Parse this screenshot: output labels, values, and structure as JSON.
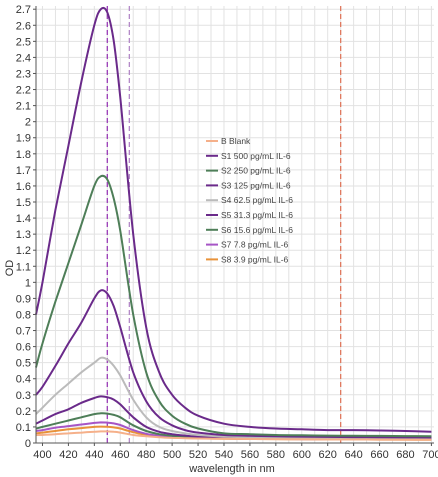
{
  "chart_data": {
    "type": "line",
    "xlabel": "wavelength in nm",
    "ylabel": "OD",
    "xlim": [
      395,
      702
    ],
    "ylim": [
      0,
      2.72
    ],
    "grid": true,
    "legend_placement": "center-right",
    "x_ticks": [
      "400",
      "420",
      "440",
      "460",
      "480",
      "500",
      "520",
      "540",
      "560",
      "580",
      "600",
      "620",
      "640",
      "660",
      "680",
      "700"
    ],
    "y_ticks": [
      "0",
      "0.1",
      "0.2",
      "0.3",
      "0.4",
      "0.5",
      "0.6",
      "0.7",
      "0.8",
      "0.9",
      "1",
      "1.1",
      "1.2",
      "1.3",
      "1.4",
      "1.5",
      "1.6",
      "1.7",
      "1.8",
      "1.9",
      "2",
      "2.1",
      "2.2",
      "2.3",
      "2.4",
      "2.5",
      "2.6",
      "2.7"
    ],
    "x": [
      395,
      400,
      410,
      420,
      430,
      440,
      445,
      450,
      455,
      460,
      470,
      480,
      490,
      500,
      510,
      520,
      540,
      560,
      580,
      600,
      620,
      640,
      660,
      680,
      700
    ],
    "series": [
      {
        "name": "B Blank",
        "color": "#f5b08a",
        "values": [
          0.05,
          0.05,
          0.055,
          0.06,
          0.065,
          0.07,
          0.072,
          0.072,
          0.07,
          0.065,
          0.05,
          0.042,
          0.036,
          0.032,
          0.03,
          0.028,
          0.026,
          0.025,
          0.024,
          0.023,
          0.022,
          0.022,
          0.021,
          0.02,
          0.02
        ]
      },
      {
        "name": "S1 500 pg/mL IL-6",
        "color": "#6a2a8a",
        "values": [
          0.8,
          1.0,
          1.45,
          1.85,
          2.25,
          2.6,
          2.7,
          2.68,
          2.5,
          2.15,
          1.3,
          0.72,
          0.44,
          0.3,
          0.22,
          0.17,
          0.12,
          0.1,
          0.09,
          0.085,
          0.08,
          0.08,
          0.078,
          0.075,
          0.07
        ]
      },
      {
        "name": "S2 250 pg/mL IL-6",
        "color": "#4e7e58",
        "values": [
          0.47,
          0.62,
          0.88,
          1.12,
          1.36,
          1.6,
          1.66,
          1.64,
          1.52,
          1.32,
          0.8,
          0.44,
          0.26,
          0.17,
          0.12,
          0.09,
          0.06,
          0.055,
          0.05,
          0.048,
          0.046,
          0.045,
          0.044,
          0.043,
          0.042
        ]
      },
      {
        "name": "S3 125 pg/mL IL-6",
        "color": "#6a2a8a",
        "values": [
          0.3,
          0.35,
          0.48,
          0.62,
          0.75,
          0.9,
          0.95,
          0.93,
          0.85,
          0.72,
          0.44,
          0.26,
          0.16,
          0.11,
          0.08,
          0.065,
          0.05,
          0.045,
          0.042,
          0.04,
          0.038,
          0.037,
          0.036,
          0.035,
          0.034
        ]
      },
      {
        "name": "S4 62.5 pg/mL IL-6",
        "color": "#bbbbbb",
        "values": [
          0.18,
          0.22,
          0.3,
          0.37,
          0.44,
          0.5,
          0.53,
          0.52,
          0.48,
          0.42,
          0.27,
          0.16,
          0.1,
          0.075,
          0.06,
          0.05,
          0.04,
          0.036,
          0.034,
          0.032,
          0.031,
          0.03,
          0.029,
          0.028,
          0.028
        ]
      },
      {
        "name": "S5 31.3 pg/mL IL-6",
        "color": "#6a2a8a",
        "values": [
          0.12,
          0.14,
          0.18,
          0.21,
          0.25,
          0.28,
          0.29,
          0.285,
          0.27,
          0.24,
          0.16,
          0.1,
          0.07,
          0.055,
          0.046,
          0.04,
          0.034,
          0.031,
          0.03,
          0.029,
          0.028,
          0.027,
          0.026,
          0.025,
          0.025
        ]
      },
      {
        "name": "S6 15.6 pg/mL IL-6",
        "color": "#4e7e58",
        "values": [
          0.09,
          0.1,
          0.12,
          0.14,
          0.16,
          0.18,
          0.185,
          0.183,
          0.175,
          0.16,
          0.11,
          0.075,
          0.055,
          0.045,
          0.04,
          0.036,
          0.031,
          0.029,
          0.028,
          0.027,
          0.026,
          0.026,
          0.025,
          0.024,
          0.024
        ]
      },
      {
        "name": "S7 7.8 pg/mL IL-6",
        "color": "#a655c6",
        "values": [
          0.075,
          0.08,
          0.095,
          0.105,
          0.115,
          0.125,
          0.128,
          0.127,
          0.122,
          0.112,
          0.08,
          0.057,
          0.045,
          0.038,
          0.034,
          0.031,
          0.028,
          0.026,
          0.025,
          0.024,
          0.024,
          0.023,
          0.023,
          0.022,
          0.022
        ]
      },
      {
        "name": "S8 3.9 pg/mL IL-6",
        "color": "#e8923a",
        "values": [
          0.06,
          0.065,
          0.075,
          0.085,
          0.093,
          0.1,
          0.102,
          0.101,
          0.097,
          0.09,
          0.067,
          0.05,
          0.04,
          0.034,
          0.031,
          0.029,
          0.026,
          0.025,
          0.024,
          0.023,
          0.022,
          0.022,
          0.021,
          0.021,
          0.02
        ]
      }
    ],
    "vlines": [
      {
        "x": 450,
        "color": "#9a3bb8"
      },
      {
        "x": 467,
        "color": "#b48ac8"
      },
      {
        "x": 630,
        "color": "#e07a5f"
      }
    ]
  }
}
